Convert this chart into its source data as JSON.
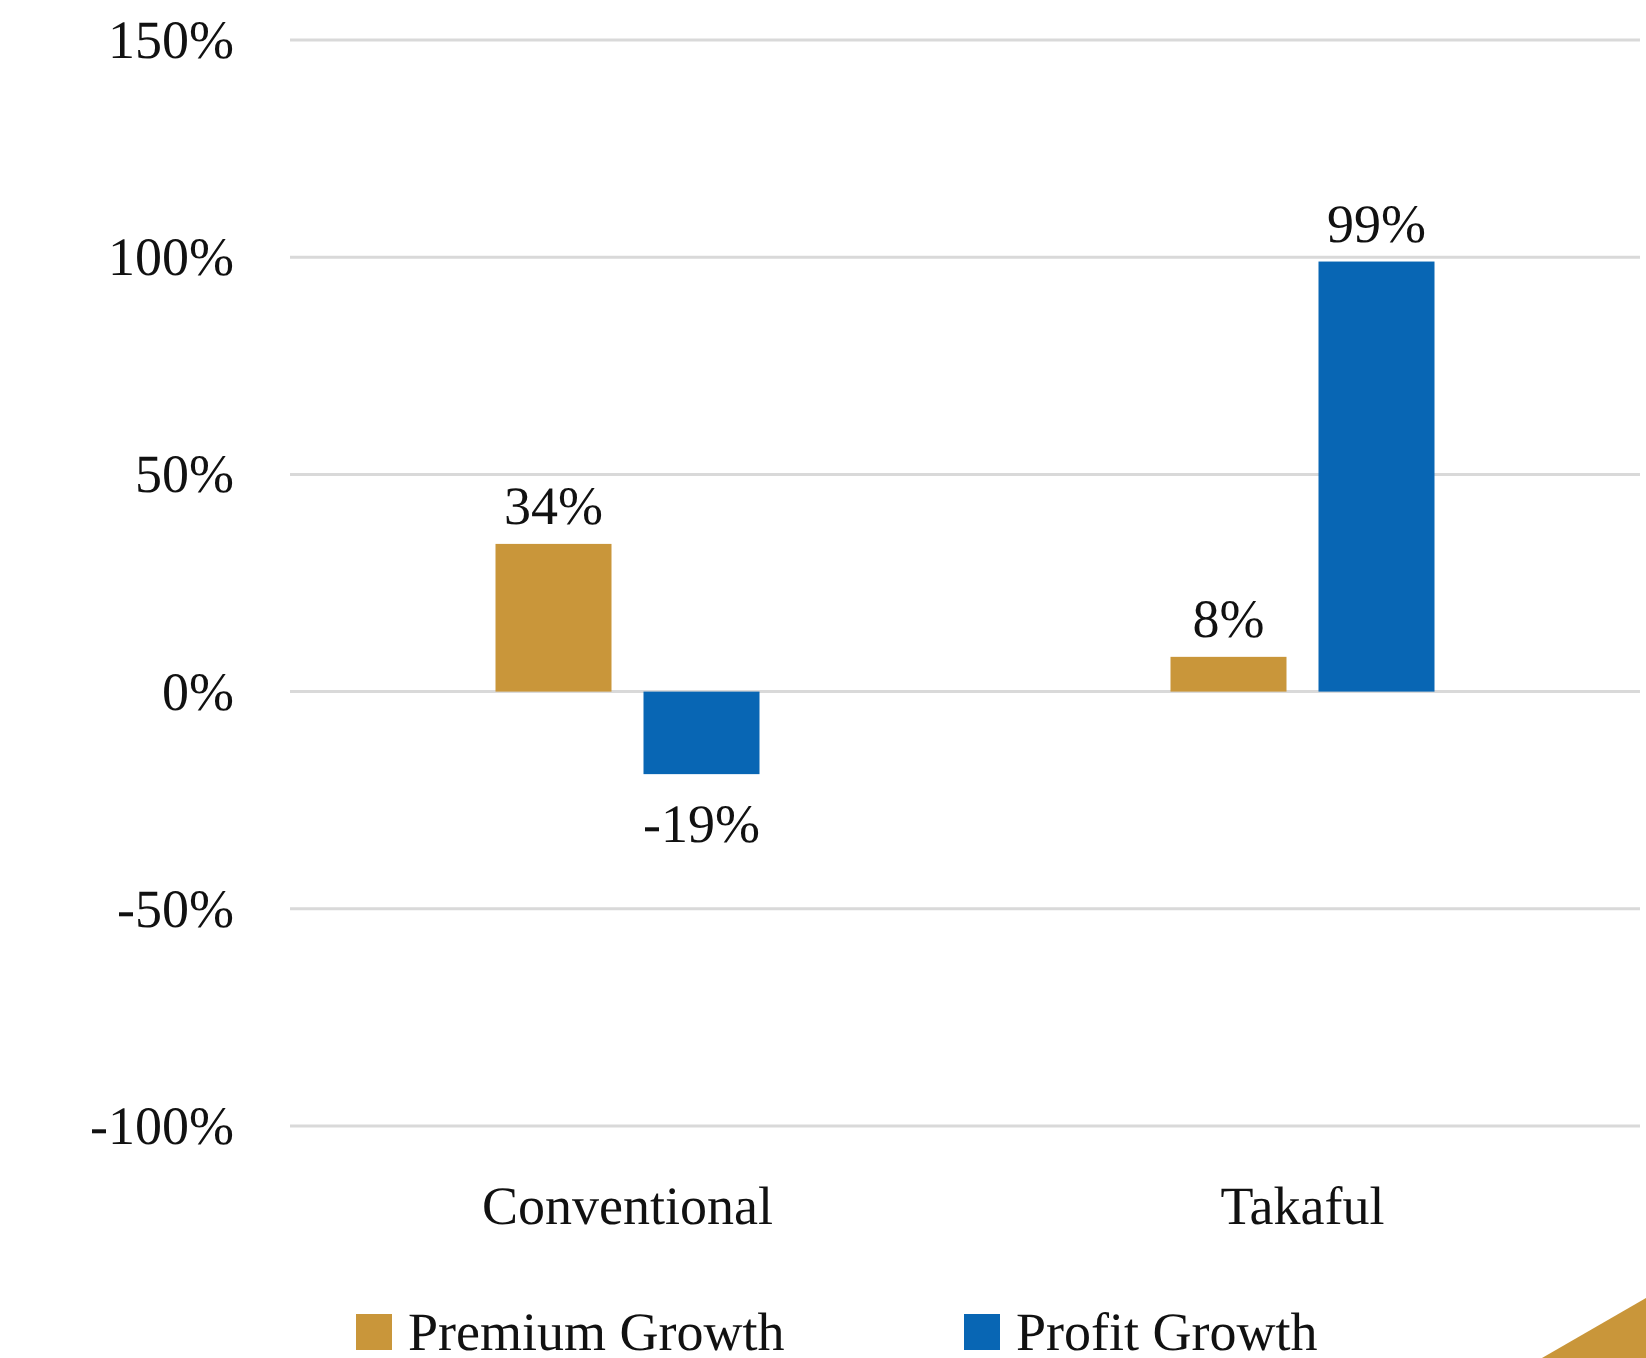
{
  "chart_data": {
    "type": "bar",
    "categories": [
      "Conventional",
      "Takaful"
    ],
    "series": [
      {
        "name": "Premium Growth",
        "color": "#c9963a",
        "values": [
          34,
          8
        ]
      },
      {
        "name": "Profit Growth",
        "color": "#0866b4",
        "values": [
          -19,
          99
        ]
      }
    ],
    "ylim": [
      -100,
      150
    ],
    "yticks": [
      {
        "value": -100,
        "label": "-100%"
      },
      {
        "value": -50,
        "label": "-50%"
      },
      {
        "value": 0,
        "label": "0%"
      },
      {
        "value": 50,
        "label": "50%"
      },
      {
        "value": 100,
        "label": "100%"
      },
      {
        "value": 150,
        "label": "150%"
      }
    ],
    "value_labels": [
      [
        "34%",
        "8%"
      ],
      [
        "-19%",
        "99%"
      ]
    ],
    "grid": "y",
    "legend": "bottom"
  }
}
